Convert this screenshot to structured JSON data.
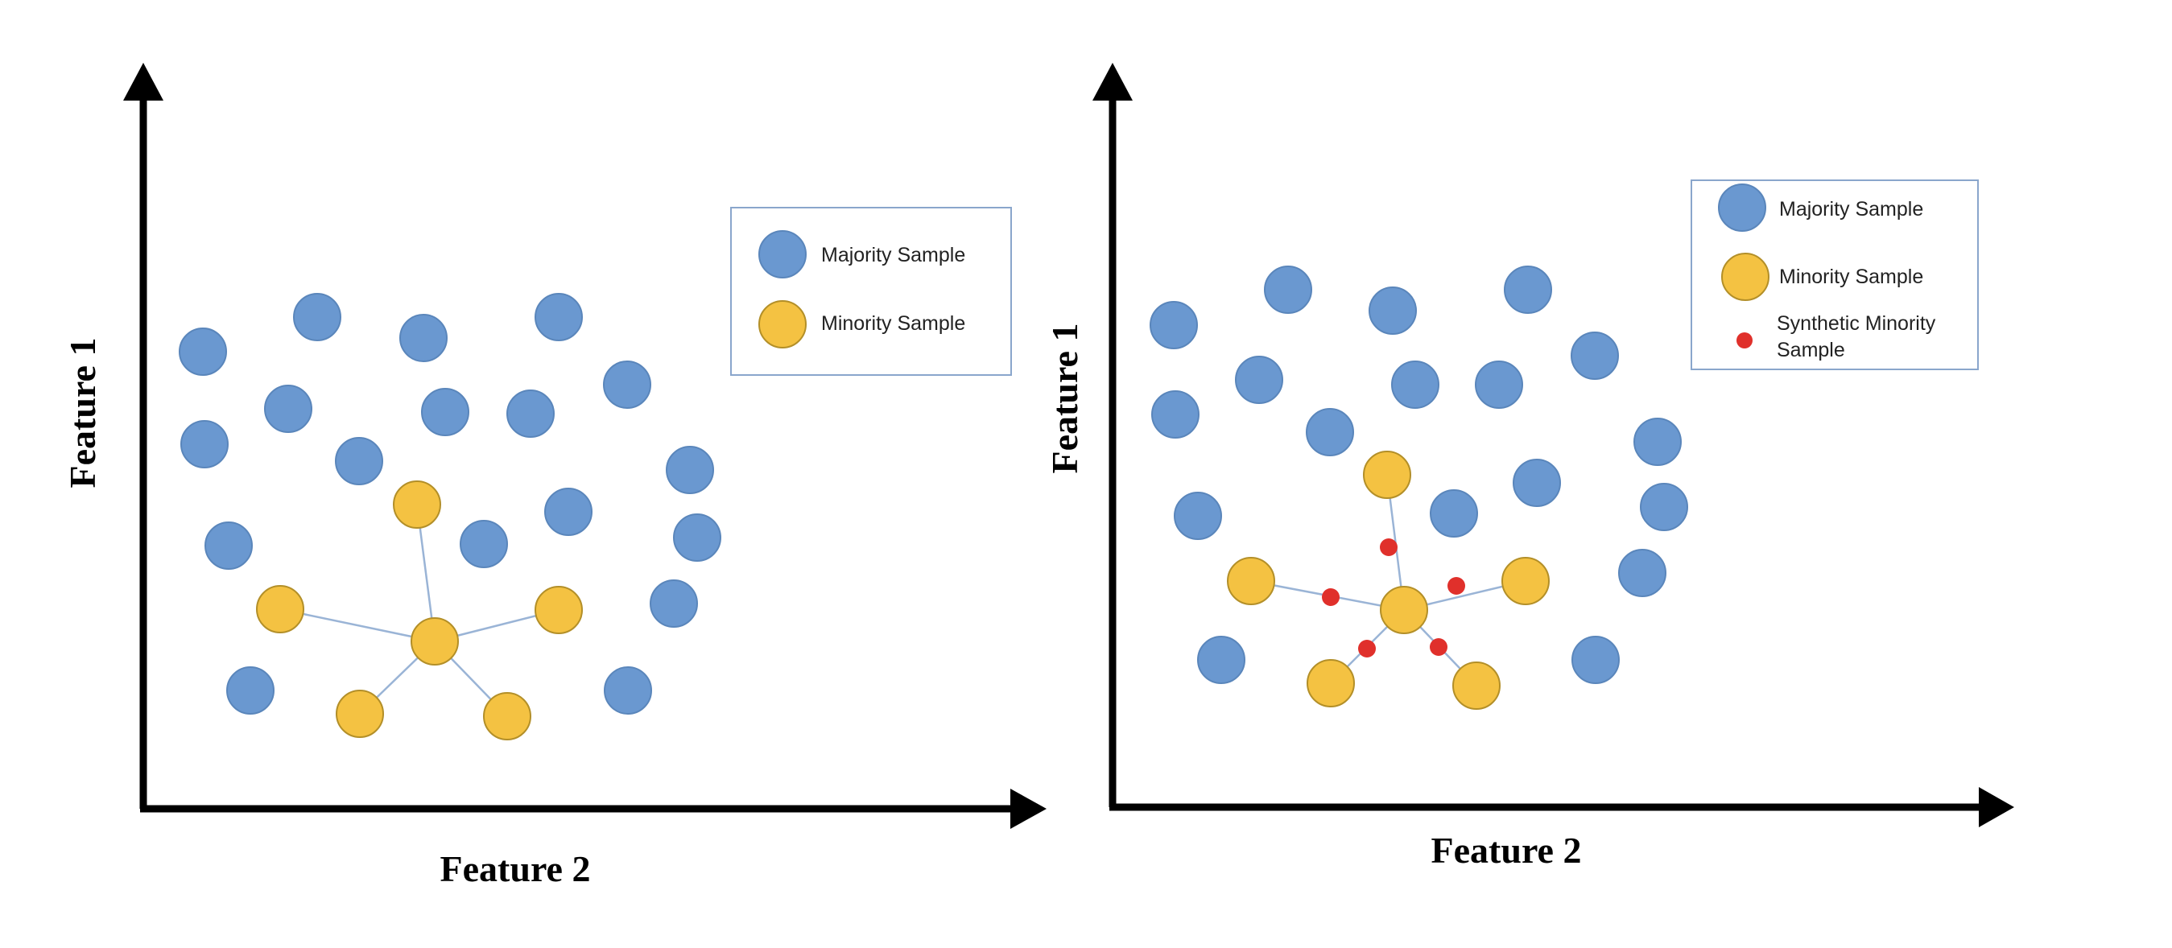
{
  "colors": {
    "majority_fill": "#6a98d0",
    "majority_stroke": "#5a86bb",
    "minority_fill": "#f4c242",
    "minority_stroke": "#b38f28",
    "synthetic_fill": "#e0302b",
    "link": "#9ab4d6",
    "axis": "#000000",
    "legend_border": "#8aa6cc"
  },
  "panels": [
    {
      "id": "left",
      "ylabel": "Feature 1",
      "xlabel": "Feature 2",
      "legend": [
        {
          "kind": "majority",
          "label": "Majority Sample"
        },
        {
          "kind": "minority",
          "label": "Minority Sample"
        }
      ]
    },
    {
      "id": "right",
      "ylabel": "Feature 1",
      "xlabel": "Feature 2",
      "legend": [
        {
          "kind": "majority",
          "label": "Majority Sample"
        },
        {
          "kind": "minority",
          "label": "Minority Sample"
        },
        {
          "kind": "synthetic",
          "label": "Synthetic Minority Sample"
        }
      ]
    }
  ]
}
